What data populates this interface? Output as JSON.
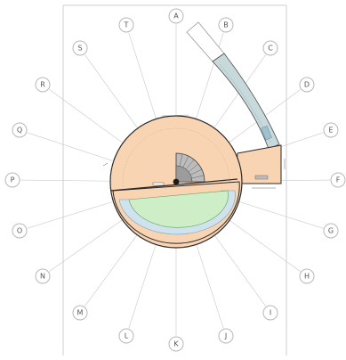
{
  "drawing": {
    "colors": {
      "paper": "#ffffff",
      "frame": "#cfcfcf",
      "grid": "#c9c9c9",
      "floor": "#f9d4b2",
      "floor_outline": "#2b2b2b",
      "lawn": "#cdeec6",
      "water": "#cfe3ee",
      "wing": "#c7d9da",
      "core": "#bcbcbc"
    },
    "grid_bubbles": [
      "A",
      "B",
      "C",
      "D",
      "E",
      "F",
      "G",
      "H",
      "I",
      "J",
      "K",
      "L",
      "M",
      "N",
      "O",
      "P",
      "Q",
      "R",
      "S",
      "T"
    ],
    "room_labels": {
      "main_hall": "",
      "lower_room": "",
      "east_room": ""
    }
  }
}
